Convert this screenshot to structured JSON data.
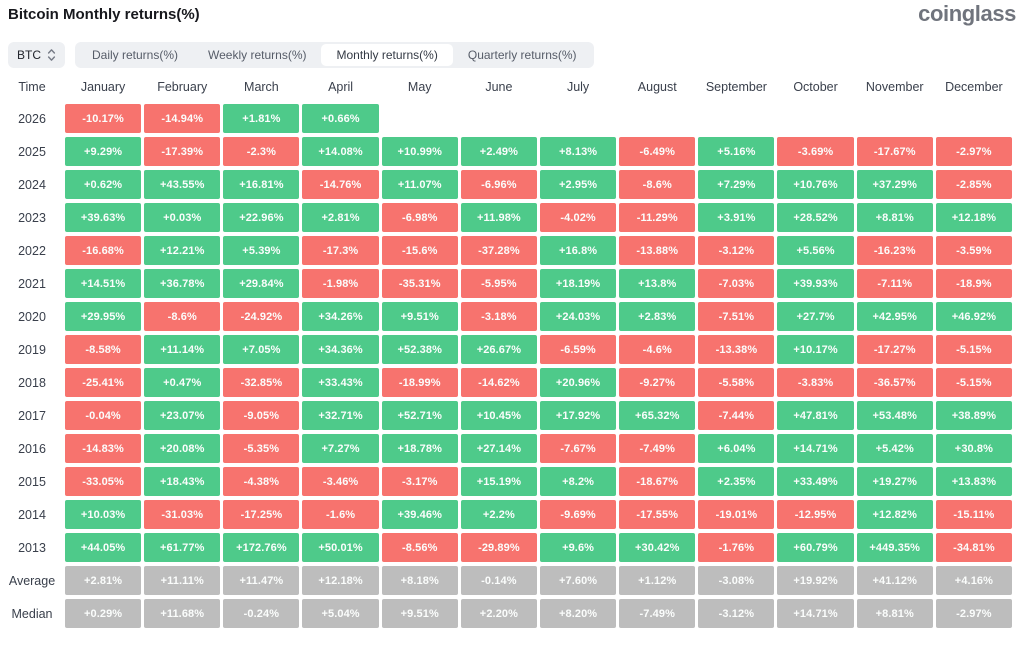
{
  "header": {
    "title": "Bitcoin Monthly returns(%)",
    "logo": "coinglass"
  },
  "controls": {
    "symbol_select": {
      "value": "BTC"
    },
    "tabs": [
      {
        "label": "Daily returns(%)",
        "active": false
      },
      {
        "label": "Weekly returns(%)",
        "active": false
      },
      {
        "label": "Monthly returns(%)",
        "active": true
      },
      {
        "label": "Quarterly returns(%)",
        "active": false
      }
    ]
  },
  "table": {
    "corner_header": "Time"
  },
  "chart_data": {
    "type": "heatmap",
    "title": "Bitcoin Monthly returns(%)",
    "x_labels": [
      "January",
      "February",
      "March",
      "April",
      "May",
      "June",
      "July",
      "August",
      "September",
      "October",
      "November",
      "December"
    ],
    "y_labels": [
      "2026",
      "2025",
      "2024",
      "2023",
      "2022",
      "2021",
      "2020",
      "2019",
      "2018",
      "2017",
      "2016",
      "2015",
      "2014",
      "2013",
      "Average",
      "Median"
    ],
    "legend_note": "green = positive monthly return, red = negative, gray = summary rows",
    "rows": [
      {
        "label": "2026",
        "kind": "year",
        "values": [
          "-10.17%",
          "-14.94%",
          "+1.81%",
          "+0.66%",
          null,
          null,
          null,
          null,
          null,
          null,
          null,
          null
        ]
      },
      {
        "label": "2025",
        "kind": "year",
        "values": [
          "+9.29%",
          "-17.39%",
          "-2.3%",
          "+14.08%",
          "+10.99%",
          "+2.49%",
          "+8.13%",
          "-6.49%",
          "+5.16%",
          "-3.69%",
          "-17.67%",
          "-2.97%"
        ]
      },
      {
        "label": "2024",
        "kind": "year",
        "values": [
          "+0.62%",
          "+43.55%",
          "+16.81%",
          "-14.76%",
          "+11.07%",
          "-6.96%",
          "+2.95%",
          "-8.6%",
          "+7.29%",
          "+10.76%",
          "+37.29%",
          "-2.85%"
        ]
      },
      {
        "label": "2023",
        "kind": "year",
        "values": [
          "+39.63%",
          "+0.03%",
          "+22.96%",
          "+2.81%",
          "-6.98%",
          "+11.98%",
          "-4.02%",
          "-11.29%",
          "+3.91%",
          "+28.52%",
          "+8.81%",
          "+12.18%"
        ]
      },
      {
        "label": "2022",
        "kind": "year",
        "values": [
          "-16.68%",
          "+12.21%",
          "+5.39%",
          "-17.3%",
          "-15.6%",
          "-37.28%",
          "+16.8%",
          "-13.88%",
          "-3.12%",
          "+5.56%",
          "-16.23%",
          "-3.59%"
        ]
      },
      {
        "label": "2021",
        "kind": "year",
        "values": [
          "+14.51%",
          "+36.78%",
          "+29.84%",
          "-1.98%",
          "-35.31%",
          "-5.95%",
          "+18.19%",
          "+13.8%",
          "-7.03%",
          "+39.93%",
          "-7.11%",
          "-18.9%"
        ]
      },
      {
        "label": "2020",
        "kind": "year",
        "values": [
          "+29.95%",
          "-8.6%",
          "-24.92%",
          "+34.26%",
          "+9.51%",
          "-3.18%",
          "+24.03%",
          "+2.83%",
          "-7.51%",
          "+27.7%",
          "+42.95%",
          "+46.92%"
        ]
      },
      {
        "label": "2019",
        "kind": "year",
        "values": [
          "-8.58%",
          "+11.14%",
          "+7.05%",
          "+34.36%",
          "+52.38%",
          "+26.67%",
          "-6.59%",
          "-4.6%",
          "-13.38%",
          "+10.17%",
          "-17.27%",
          "-5.15%"
        ]
      },
      {
        "label": "2018",
        "kind": "year",
        "values": [
          "-25.41%",
          "+0.47%",
          "-32.85%",
          "+33.43%",
          "-18.99%",
          "-14.62%",
          "+20.96%",
          "-9.27%",
          "-5.58%",
          "-3.83%",
          "-36.57%",
          "-5.15%"
        ]
      },
      {
        "label": "2017",
        "kind": "year",
        "values": [
          "-0.04%",
          "+23.07%",
          "-9.05%",
          "+32.71%",
          "+52.71%",
          "+10.45%",
          "+17.92%",
          "+65.32%",
          "-7.44%",
          "+47.81%",
          "+53.48%",
          "+38.89%"
        ]
      },
      {
        "label": "2016",
        "kind": "year",
        "values": [
          "-14.83%",
          "+20.08%",
          "-5.35%",
          "+7.27%",
          "+18.78%",
          "+27.14%",
          "-7.67%",
          "-7.49%",
          "+6.04%",
          "+14.71%",
          "+5.42%",
          "+30.8%"
        ]
      },
      {
        "label": "2015",
        "kind": "year",
        "values": [
          "-33.05%",
          "+18.43%",
          "-4.38%",
          "-3.46%",
          "-3.17%",
          "+15.19%",
          "+8.2%",
          "-18.67%",
          "+2.35%",
          "+33.49%",
          "+19.27%",
          "+13.83%"
        ]
      },
      {
        "label": "2014",
        "kind": "year",
        "values": [
          "+10.03%",
          "-31.03%",
          "-17.25%",
          "-1.6%",
          "+39.46%",
          "+2.2%",
          "-9.69%",
          "-17.55%",
          "-19.01%",
          "-12.95%",
          "+12.82%",
          "-15.11%"
        ]
      },
      {
        "label": "2013",
        "kind": "year",
        "values": [
          "+44.05%",
          "+61.77%",
          "+172.76%",
          "+50.01%",
          "-8.56%",
          "-29.89%",
          "+9.6%",
          "+30.42%",
          "-1.76%",
          "+60.79%",
          "+449.35%",
          "-34.81%"
        ]
      },
      {
        "label": "Average",
        "kind": "summary",
        "values": [
          "+2.81%",
          "+11.11%",
          "+11.47%",
          "+12.18%",
          "+8.18%",
          "-0.14%",
          "+7.60%",
          "+1.12%",
          "-3.08%",
          "+19.92%",
          "+41.12%",
          "+4.16%"
        ]
      },
      {
        "label": "Median",
        "kind": "summary",
        "values": [
          "+0.29%",
          "+11.68%",
          "-0.24%",
          "+5.04%",
          "+9.51%",
          "+2.20%",
          "+8.20%",
          "-7.49%",
          "-3.12%",
          "+14.71%",
          "+8.81%",
          "-2.97%"
        ]
      }
    ],
    "colors": {
      "positive": "#4eca8a",
      "negative": "#f7736e",
      "summary": "#bdbdbd"
    }
  }
}
